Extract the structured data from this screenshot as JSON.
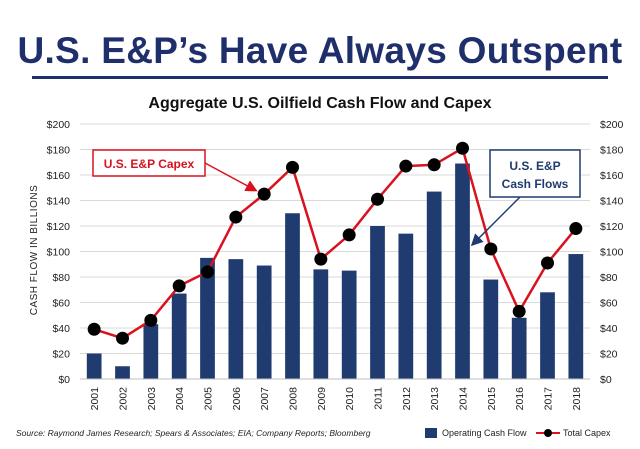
{
  "headline": "U.S. E&P’s Have Always Outspent",
  "chart_data": {
    "type": "bar",
    "title": "Aggregate U.S. Oilfield Cash Flow and Capex",
    "ylabel": "CASH FLOW IN BILLIONS",
    "xlabel": "",
    "ylim": [
      0,
      200
    ],
    "yticks": [
      "$0",
      "$20",
      "$40",
      "$60",
      "$80",
      "$100",
      "$120",
      "$140",
      "$160",
      "$180",
      "$200"
    ],
    "categories": [
      "2001",
      "2002",
      "2003",
      "2004",
      "2005",
      "2006",
      "2007",
      "2008",
      "2009",
      "2010",
      "2011",
      "2012",
      "2013",
      "2014",
      "2015",
      "2016",
      "2017",
      "2018"
    ],
    "series": [
      {
        "name": "Operating Cash Flow",
        "kind": "bar",
        "color": "#1f3b70",
        "values": [
          20,
          10,
          43,
          67,
          95,
          94,
          89,
          130,
          86,
          85,
          120,
          114,
          147,
          169,
          78,
          48,
          68,
          98
        ]
      },
      {
        "name": "Total Capex",
        "kind": "line",
        "color": "#d9121f",
        "values": [
          39,
          32,
          46,
          73,
          84,
          127,
          145,
          166,
          94,
          113,
          141,
          167,
          168,
          181,
          102,
          53,
          91,
          118
        ]
      }
    ],
    "annotations": [
      {
        "text": "U.S. E&P Capex",
        "color": "#d9121f"
      },
      {
        "line1": "U.S. E&P",
        "line2": "Cash Flows",
        "color": "#1f3b70"
      }
    ],
    "source": "Source: Raymond James Research; Spears & Associates; EIA; Company Reports; Bloomberg",
    "legend": "bottom-right"
  }
}
